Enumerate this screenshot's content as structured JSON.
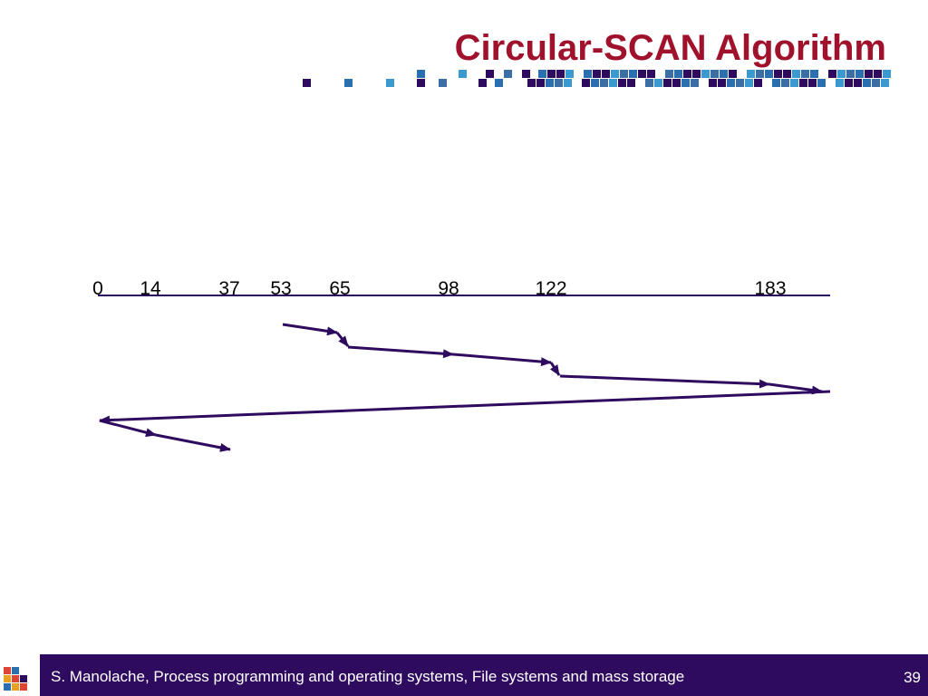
{
  "header": {
    "title": "Circular-SCAN Algorithm"
  },
  "tracks": {
    "labels": [
      "0",
      "14",
      "37",
      "53",
      "65",
      "98",
      "122",
      "183"
    ]
  },
  "footer": {
    "text": "S. Manolache, Process programming and operating systems, File systems and mass storage",
    "page": "39"
  }
}
